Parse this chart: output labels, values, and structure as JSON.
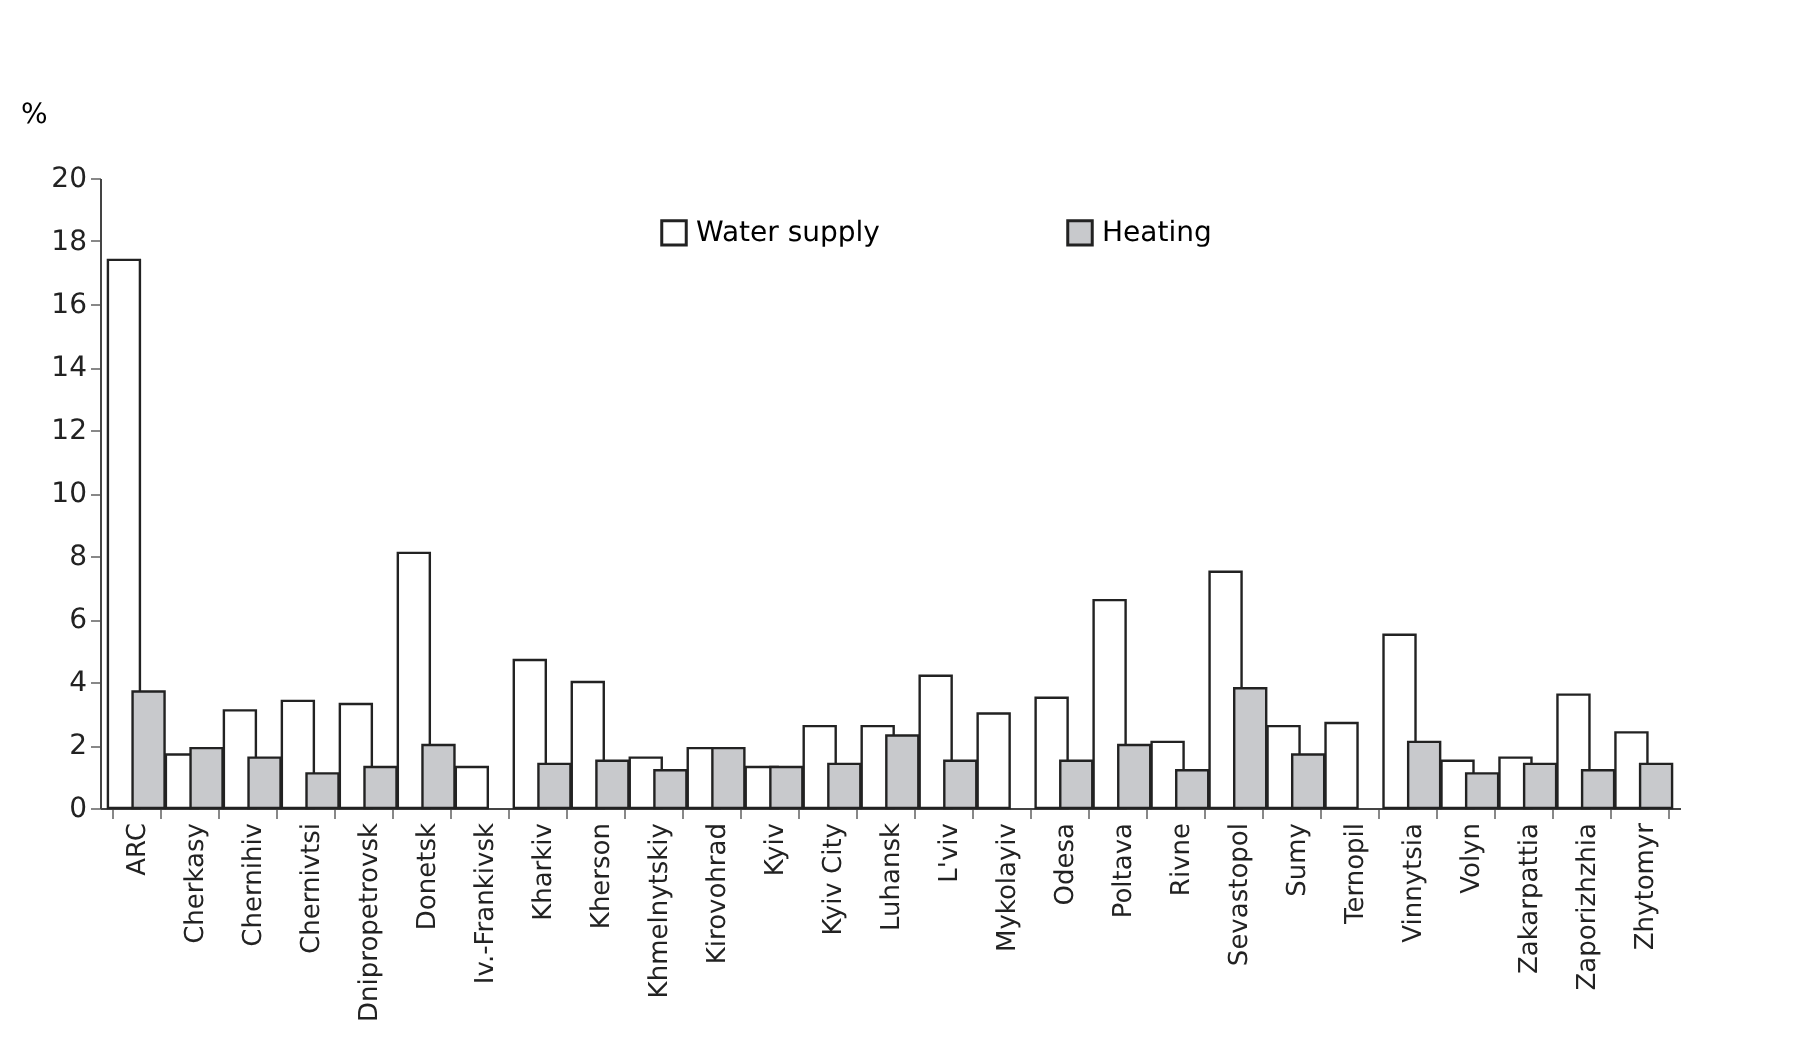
{
  "chart_data": {
    "type": "bar",
    "ylabel": "%",
    "categories": [
      "ARC",
      "Cherkasy",
      "Chernihiv",
      "Chernivtsi",
      "Dnipropetrovsk",
      "Donetsk",
      "Iv.-Frankivsk",
      "Kharkiv",
      "Kherson",
      "Khmelnytskiy",
      "Kirovohrad",
      "Kyiv",
      "Kyiv City",
      "Luhansk",
      "L'viv",
      "Mykolayiv",
      "Odesa",
      "Poltava",
      "Rivne",
      "Sevastopol",
      "Sumy",
      "Ternopil",
      "Vinnytsia",
      "Volyn",
      "Zakarpattia",
      "Zaporizhzhia",
      "Zhytomyr"
    ],
    "series": [
      {
        "name": "Water supply",
        "color": "#ffffff",
        "values": [
          17.4,
          1.7,
          3.1,
          3.4,
          3.3,
          8.1,
          1.3,
          4.7,
          4.0,
          1.6,
          1.9,
          1.3,
          2.6,
          2.6,
          4.2,
          3.0,
          3.5,
          6.6,
          2.1,
          7.5,
          2.6,
          2.7,
          5.5,
          1.5,
          1.6,
          3.6,
          2.4
        ]
      },
      {
        "name": "Heating",
        "color": "#c8c9cc",
        "values": [
          3.7,
          1.9,
          1.6,
          1.1,
          1.3,
          2.0,
          null,
          1.4,
          1.5,
          1.2,
          1.9,
          1.3,
          1.4,
          2.3,
          1.5,
          null,
          1.5,
          2.0,
          1.2,
          3.8,
          1.7,
          null,
          2.1,
          1.1,
          1.4,
          1.2,
          1.4
        ]
      }
    ],
    "ylim": [
      0,
      20
    ],
    "yticks": [
      0,
      2,
      4,
      6,
      8,
      10,
      12,
      14,
      16,
      18,
      20
    ],
    "grid": false,
    "legend": "top"
  }
}
